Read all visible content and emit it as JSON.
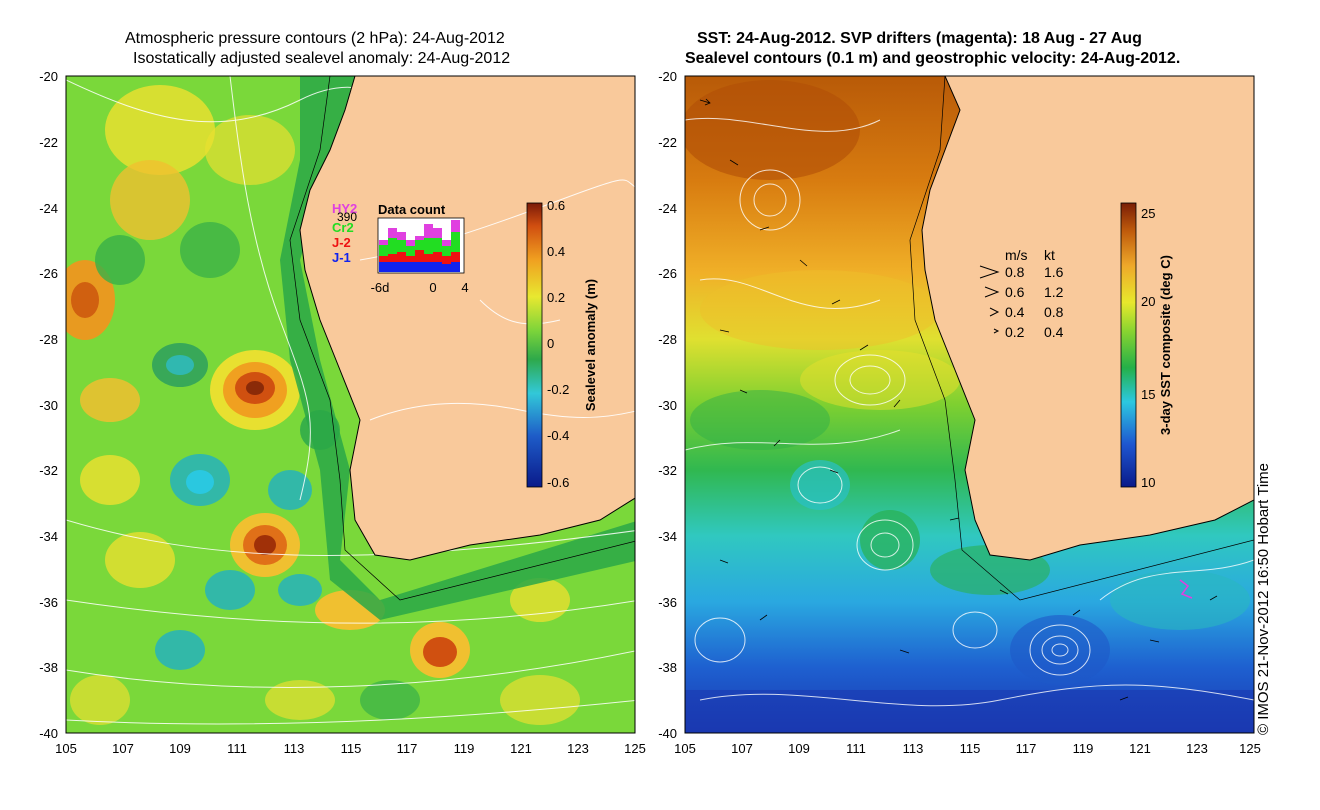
{
  "left_panel": {
    "title_line1": "Atmospheric pressure contours (2 hPa): 24-Aug-2012",
    "title_line2": "Isostatically adjusted sealevel anomaly: 24-Aug-2012",
    "colorbar_label": "Sealevel anomaly (m)",
    "colorbar_ticks": [
      "0.6",
      "0.4",
      "0.2",
      "0",
      "-0.2",
      "-0.4",
      "-0.6"
    ],
    "inset": {
      "title": "Data count",
      "count": "390",
      "satellites": [
        {
          "name": "HY2",
          "color": "#e040e0"
        },
        {
          "name": "Cr2",
          "color": "#22dd22"
        },
        {
          "name": "J-2",
          "color": "#ee1111"
        },
        {
          "name": "J-1",
          "color": "#1122ee"
        }
      ],
      "xticks": [
        "-6d",
        "0",
        "4"
      ]
    }
  },
  "right_panel": {
    "title_line1": "SST: 24-Aug-2012. SVP drifters (magenta): 18 Aug - 27 Aug",
    "title_line2": "Sealevel contours (0.1 m) and geostrophic velocity: 24-Aug-2012.",
    "colorbar_label": "3-day SST composite (deg C)",
    "colorbar_ticks": [
      "25",
      "20",
      "15",
      "10"
    ],
    "velocity_legend": {
      "header_ms": "m/s",
      "header_kt": "kt",
      "rows": [
        {
          "ms": "0.8",
          "kt": "1.6"
        },
        {
          "ms": "0.6",
          "kt": "1.2"
        },
        {
          "ms": "0.4",
          "kt": "0.8"
        },
        {
          "ms": "0.2",
          "kt": "0.4"
        }
      ]
    }
  },
  "axes": {
    "lat_ticks": [
      "-20",
      "-22",
      "-24",
      "-26",
      "-28",
      "-30",
      "-32",
      "-34",
      "-36",
      "-38",
      "-40"
    ],
    "lon_ticks": [
      "105",
      "107",
      "109",
      "111",
      "113",
      "115",
      "117",
      "119",
      "121",
      "123",
      "125"
    ]
  },
  "credit": "© IMOS 21-Nov-2012 16:50 Hobart Time",
  "colors": {
    "land": "#f9c99b",
    "coast": "#000000"
  }
}
